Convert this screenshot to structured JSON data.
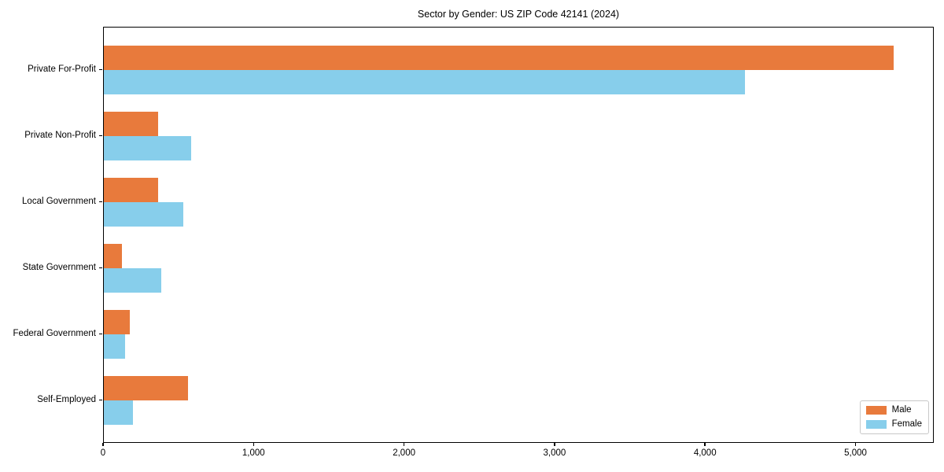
{
  "chart_data": {
    "type": "bar",
    "orientation": "horizontal",
    "title": "Sector by Gender: US ZIP Code 42141 (2024)",
    "categories": [
      "Private For-Profit",
      "Private Non-Profit",
      "Local Government",
      "State Government",
      "Federal Government",
      "Self-Employed"
    ],
    "series": [
      {
        "name": "Male",
        "color": "#e87a3c",
        "values": [
          5250,
          360,
          360,
          120,
          170,
          560
        ]
      },
      {
        "name": "Female",
        "color": "#87ceeb",
        "values": [
          4260,
          580,
          530,
          380,
          140,
          195
        ]
      }
    ],
    "xlabel": "",
    "ylabel": "",
    "xlim": [
      0,
      5520
    ],
    "x_ticks": [
      0,
      1000,
      2000,
      3000,
      4000,
      5000
    ],
    "x_tick_labels": [
      "0",
      "1,000",
      "2,000",
      "3,000",
      "4,000",
      "5,000"
    ],
    "legend_position": "lower right",
    "grid": false,
    "axis_color": "#000000",
    "background_color": "#ffffff"
  }
}
